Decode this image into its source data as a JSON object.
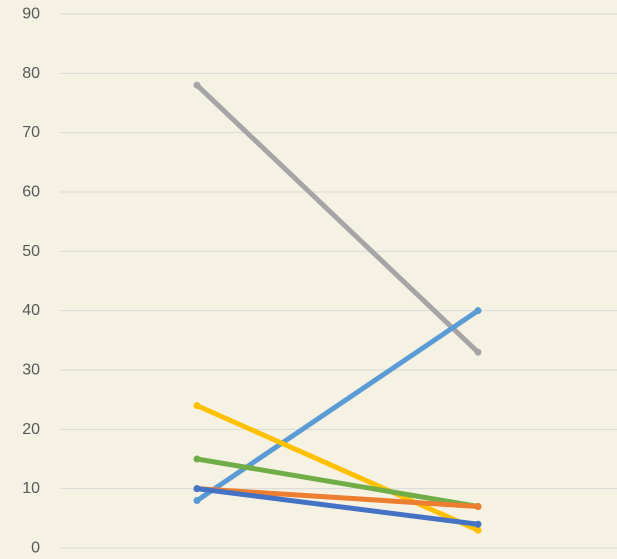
{
  "chart_data": {
    "type": "line",
    "title": "",
    "xlabel": "",
    "ylabel": "",
    "categories": [
      "",
      ""
    ],
    "ylim": [
      0,
      90
    ],
    "yticks": [
      "0",
      "10",
      "20",
      "30",
      "40",
      "50",
      "60",
      "70",
      "80",
      "90"
    ],
    "grid": true,
    "legend": "none",
    "series": [
      {
        "color": "#a5a5a5",
        "values": [
          78,
          33
        ]
      },
      {
        "color": "#5b9bd5",
        "values": [
          8,
          40
        ]
      },
      {
        "color": "#ffc000",
        "values": [
          24,
          3
        ]
      },
      {
        "color": "#70ad47",
        "values": [
          15,
          7
        ]
      },
      {
        "color": "#ed7d31",
        "values": [
          10,
          7
        ]
      },
      {
        "color": "#4472c4",
        "values": [
          10,
          4
        ]
      }
    ]
  }
}
